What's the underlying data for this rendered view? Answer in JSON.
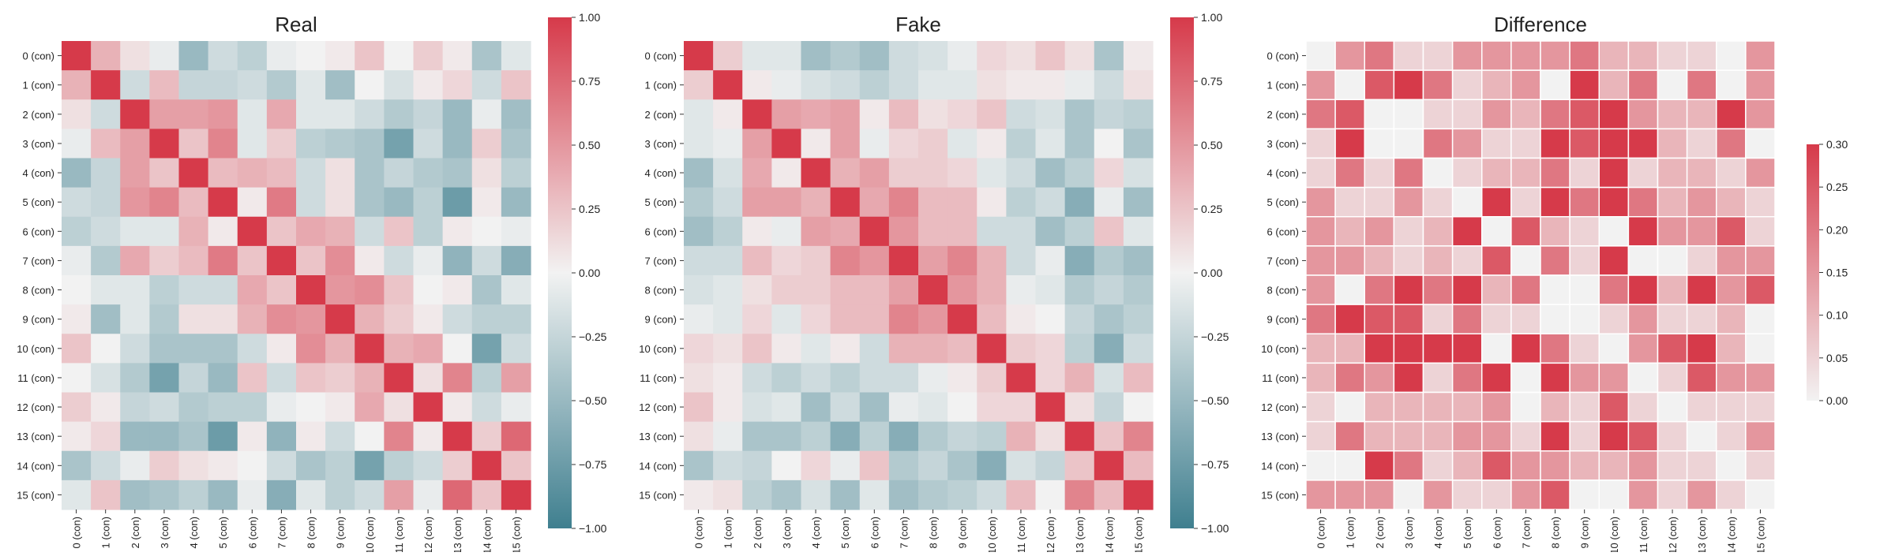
{
  "figure": {
    "panels": [
      "real",
      "fake",
      "difference"
    ]
  },
  "chart_data": [
    {
      "type": "heatmap",
      "title": "Real",
      "labels": [
        "0 (con)",
        "1 (con)",
        "2 (con)",
        "3 (con)",
        "4 (con)",
        "5 (con)",
        "6 (con)",
        "7 (con)",
        "8 (con)",
        "9 (con)",
        "10 (con)",
        "11 (con)",
        "12 (con)",
        "13 (con)",
        "14 (con)",
        "15 (con)"
      ],
      "colorscale": "diverging teal-white-red",
      "colors": {
        "negative": "#3f7f8f",
        "mid": "#f2f2f2",
        "positive": "#d63a4a"
      },
      "vmin": -1.0,
      "vmax": 1.0,
      "colorbar_ticks": [
        -1.0,
        -0.75,
        -0.5,
        -0.25,
        0.0,
        0.25,
        0.5,
        0.75,
        1.0
      ],
      "colorbar_tick_labels": [
        "−1.00",
        "−0.75",
        "−0.50",
        "−0.25",
        "0.00",
        "0.25",
        "0.50",
        "0.75",
        "1.00"
      ],
      "gridlines": false,
      "matrix": [
        [
          1.0,
          0.35,
          0.1,
          -0.05,
          -0.5,
          -0.2,
          -0.3,
          -0.05,
          0.0,
          0.05,
          0.25,
          0.0,
          0.2,
          0.05,
          -0.4,
          -0.1
        ],
        [
          0.35,
          1.0,
          -0.2,
          0.3,
          -0.25,
          -0.25,
          -0.2,
          -0.35,
          -0.1,
          -0.45,
          0.0,
          -0.15,
          0.05,
          0.15,
          -0.2,
          0.25
        ],
        [
          0.1,
          -0.2,
          1.0,
          0.45,
          0.45,
          0.5,
          -0.1,
          0.4,
          -0.1,
          -0.1,
          -0.2,
          -0.35,
          -0.25,
          -0.5,
          -0.05,
          -0.45
        ],
        [
          -0.05,
          0.3,
          0.45,
          1.0,
          0.25,
          0.6,
          -0.1,
          0.2,
          -0.3,
          -0.35,
          -0.4,
          -0.7,
          -0.2,
          -0.5,
          0.2,
          -0.4
        ],
        [
          -0.5,
          -0.25,
          0.45,
          0.25,
          1.0,
          0.3,
          0.35,
          0.3,
          -0.2,
          0.1,
          -0.4,
          -0.25,
          -0.35,
          -0.4,
          0.1,
          -0.3
        ],
        [
          -0.2,
          -0.25,
          0.5,
          0.6,
          0.3,
          1.0,
          0.05,
          0.65,
          -0.2,
          0.1,
          -0.4,
          -0.5,
          -0.3,
          -0.75,
          0.05,
          -0.5
        ],
        [
          -0.3,
          -0.2,
          -0.1,
          -0.1,
          0.35,
          0.05,
          1.0,
          0.25,
          0.4,
          0.35,
          -0.2,
          0.25,
          -0.3,
          0.05,
          0.0,
          -0.05
        ],
        [
          -0.05,
          -0.35,
          0.4,
          0.2,
          0.3,
          0.65,
          0.25,
          1.0,
          0.25,
          0.55,
          0.05,
          -0.2,
          -0.05,
          -0.55,
          -0.2,
          -0.6
        ],
        [
          0.0,
          -0.1,
          -0.1,
          -0.3,
          -0.2,
          -0.2,
          0.4,
          0.25,
          1.0,
          0.5,
          0.55,
          0.25,
          0.0,
          0.05,
          -0.4,
          -0.1
        ],
        [
          0.05,
          -0.45,
          -0.1,
          -0.35,
          0.1,
          0.1,
          0.35,
          0.55,
          0.5,
          1.0,
          0.35,
          0.2,
          0.05,
          -0.2,
          -0.3,
          -0.3
        ],
        [
          0.25,
          0.0,
          -0.2,
          -0.4,
          -0.4,
          -0.4,
          -0.2,
          0.05,
          0.55,
          0.35,
          1.0,
          0.35,
          0.4,
          0.0,
          -0.7,
          -0.2
        ],
        [
          0.0,
          -0.15,
          -0.35,
          -0.7,
          -0.25,
          -0.5,
          0.25,
          -0.2,
          0.25,
          0.2,
          0.35,
          1.0,
          0.1,
          0.6,
          -0.3,
          0.45
        ],
        [
          0.2,
          0.05,
          -0.25,
          -0.2,
          -0.35,
          -0.3,
          -0.3,
          -0.05,
          0.0,
          0.05,
          0.4,
          0.1,
          1.0,
          0.05,
          -0.2,
          -0.05
        ],
        [
          0.05,
          0.15,
          -0.5,
          -0.5,
          -0.4,
          -0.75,
          0.05,
          -0.55,
          0.05,
          -0.2,
          0.0,
          0.6,
          0.05,
          1.0,
          0.2,
          0.75
        ],
        [
          -0.4,
          -0.2,
          -0.05,
          0.2,
          0.1,
          0.05,
          0.0,
          -0.2,
          -0.4,
          -0.3,
          -0.7,
          -0.3,
          -0.2,
          0.2,
          1.0,
          0.25
        ],
        [
          -0.1,
          0.25,
          -0.45,
          -0.4,
          -0.3,
          -0.5,
          -0.05,
          -0.6,
          -0.1,
          -0.3,
          -0.2,
          0.45,
          -0.05,
          0.75,
          0.25,
          1.0
        ]
      ]
    },
    {
      "type": "heatmap",
      "title": "Fake",
      "labels": [
        "0 (con)",
        "1 (con)",
        "2 (con)",
        "3 (con)",
        "4 (con)",
        "5 (con)",
        "6 (con)",
        "7 (con)",
        "8 (con)",
        "9 (con)",
        "10 (con)",
        "11 (con)",
        "12 (con)",
        "13 (con)",
        "14 (con)",
        "15 (con)"
      ],
      "colorscale": "diverging teal-white-red",
      "colors": {
        "negative": "#3f7f8f",
        "mid": "#f2f2f2",
        "positive": "#d63a4a"
      },
      "vmin": -1.0,
      "vmax": 1.0,
      "colorbar_ticks": [
        -1.0,
        -0.75,
        -0.5,
        -0.25,
        0.0,
        0.25,
        0.5,
        0.75,
        1.0
      ],
      "colorbar_tick_labels": [
        "−1.00",
        "−0.75",
        "−0.50",
        "−0.25",
        "0.00",
        "0.25",
        "0.50",
        "0.75",
        "1.00"
      ],
      "gridlines": false,
      "matrix": [
        [
          1.0,
          0.2,
          -0.1,
          -0.1,
          -0.45,
          -0.35,
          -0.45,
          -0.2,
          -0.15,
          -0.05,
          0.15,
          0.1,
          0.25,
          0.1,
          -0.4,
          0.05
        ],
        [
          0.2,
          1.0,
          0.05,
          -0.05,
          -0.15,
          -0.2,
          -0.3,
          -0.2,
          -0.1,
          -0.1,
          0.1,
          0.05,
          0.05,
          -0.05,
          -0.2,
          0.1
        ],
        [
          -0.1,
          0.05,
          1.0,
          0.45,
          0.4,
          0.45,
          0.05,
          0.3,
          0.1,
          0.15,
          0.25,
          -0.2,
          -0.15,
          -0.4,
          -0.25,
          -0.3
        ],
        [
          -0.1,
          -0.05,
          0.45,
          1.0,
          0.05,
          0.45,
          -0.05,
          0.15,
          0.2,
          -0.1,
          0.05,
          -0.3,
          -0.1,
          -0.4,
          0.0,
          -0.4
        ],
        [
          -0.45,
          -0.15,
          0.4,
          0.05,
          1.0,
          0.35,
          0.45,
          0.2,
          0.2,
          0.15,
          -0.1,
          -0.2,
          -0.45,
          -0.3,
          0.15,
          -0.15
        ],
        [
          -0.35,
          -0.2,
          0.45,
          0.45,
          0.35,
          1.0,
          0.4,
          0.6,
          0.3,
          0.3,
          0.05,
          -0.3,
          -0.2,
          -0.6,
          -0.05,
          -0.45
        ],
        [
          -0.45,
          -0.3,
          0.05,
          -0.05,
          0.45,
          0.4,
          1.0,
          0.5,
          0.3,
          0.3,
          -0.2,
          -0.2,
          -0.45,
          -0.3,
          0.25,
          -0.1
        ],
        [
          -0.2,
          -0.2,
          0.3,
          0.15,
          0.2,
          0.6,
          0.5,
          1.0,
          0.45,
          0.6,
          0.35,
          -0.2,
          -0.05,
          -0.6,
          -0.35,
          -0.45
        ],
        [
          -0.15,
          -0.1,
          0.1,
          0.2,
          0.2,
          0.3,
          0.3,
          0.45,
          1.0,
          0.5,
          0.35,
          -0.05,
          -0.1,
          -0.35,
          -0.25,
          -0.35
        ],
        [
          -0.05,
          -0.1,
          0.15,
          -0.1,
          0.15,
          0.3,
          0.3,
          0.6,
          0.5,
          1.0,
          0.3,
          0.05,
          0.0,
          -0.25,
          -0.4,
          -0.3
        ],
        [
          0.15,
          0.1,
          0.25,
          0.05,
          -0.1,
          0.05,
          -0.2,
          0.35,
          0.35,
          0.3,
          1.0,
          0.2,
          0.15,
          -0.3,
          -0.6,
          -0.2
        ],
        [
          0.1,
          0.05,
          -0.2,
          -0.3,
          -0.2,
          -0.3,
          -0.2,
          -0.2,
          -0.05,
          0.05,
          0.2,
          1.0,
          0.15,
          0.35,
          -0.15,
          0.3
        ],
        [
          0.25,
          0.05,
          -0.15,
          -0.1,
          -0.45,
          -0.2,
          -0.45,
          -0.05,
          -0.1,
          0.0,
          0.15,
          0.15,
          1.0,
          0.1,
          -0.25,
          0.0
        ],
        [
          0.1,
          -0.05,
          -0.4,
          -0.4,
          -0.3,
          -0.6,
          -0.3,
          -0.6,
          -0.35,
          -0.25,
          -0.3,
          0.35,
          0.1,
          1.0,
          0.25,
          0.6
        ],
        [
          -0.4,
          -0.2,
          -0.25,
          0.0,
          0.15,
          -0.05,
          0.25,
          -0.35,
          -0.25,
          -0.4,
          -0.6,
          -0.15,
          -0.25,
          0.25,
          1.0,
          0.3
        ],
        [
          0.05,
          0.1,
          -0.3,
          -0.4,
          -0.15,
          -0.45,
          -0.1,
          -0.45,
          -0.35,
          -0.3,
          -0.2,
          0.3,
          0.0,
          0.6,
          0.3,
          1.0
        ]
      ]
    },
    {
      "type": "heatmap",
      "title": "Difference",
      "labels": [
        "0 (con)",
        "1 (con)",
        "2 (con)",
        "3 (con)",
        "4 (con)",
        "5 (con)",
        "6 (con)",
        "7 (con)",
        "8 (con)",
        "9 (con)",
        "10 (con)",
        "11 (con)",
        "12 (con)",
        "13 (con)",
        "14 (con)",
        "15 (con)"
      ],
      "colorscale": "sequential white-red",
      "colors": {
        "low": "#f2f2f2",
        "high": "#d63a4a"
      },
      "vmin": 0.0,
      "vmax": 0.3,
      "colorbar_ticks": [
        0.0,
        0.05,
        0.1,
        0.15,
        0.2,
        0.25,
        0.3
      ],
      "colorbar_tick_labels": [
        "0.00",
        "0.05",
        "0.10",
        "0.15",
        "0.20",
        "0.25",
        "0.30"
      ],
      "gridlines": true,
      "matrix": [
        [
          0.0,
          0.15,
          0.2,
          0.05,
          0.05,
          0.15,
          0.15,
          0.15,
          0.15,
          0.2,
          0.1,
          0.1,
          0.05,
          0.05,
          0.0,
          0.15
        ],
        [
          0.15,
          0.0,
          0.25,
          0.3,
          0.2,
          0.05,
          0.1,
          0.15,
          0.0,
          0.3,
          0.1,
          0.2,
          0.0,
          0.2,
          0.0,
          0.15
        ],
        [
          0.2,
          0.25,
          0.0,
          0.0,
          0.05,
          0.05,
          0.15,
          0.1,
          0.2,
          0.25,
          0.3,
          0.15,
          0.1,
          0.1,
          0.3,
          0.15
        ],
        [
          0.05,
          0.3,
          0.0,
          0.0,
          0.2,
          0.15,
          0.05,
          0.05,
          0.3,
          0.25,
          0.3,
          0.3,
          0.1,
          0.05,
          0.2,
          0.0
        ],
        [
          0.05,
          0.2,
          0.05,
          0.2,
          0.0,
          0.05,
          0.1,
          0.1,
          0.2,
          0.05,
          0.3,
          0.05,
          0.1,
          0.1,
          0.05,
          0.15
        ],
        [
          0.15,
          0.05,
          0.05,
          0.15,
          0.05,
          0.0,
          0.35,
          0.05,
          0.3,
          0.2,
          0.3,
          0.2,
          0.1,
          0.15,
          0.1,
          0.05
        ],
        [
          0.15,
          0.1,
          0.15,
          0.05,
          0.1,
          0.35,
          0.0,
          0.25,
          0.1,
          0.05,
          0.0,
          0.3,
          0.15,
          0.15,
          0.25,
          0.05
        ],
        [
          0.15,
          0.15,
          0.1,
          0.05,
          0.1,
          0.05,
          0.25,
          0.0,
          0.2,
          0.05,
          0.3,
          0.0,
          0.0,
          0.05,
          0.15,
          0.15
        ],
        [
          0.15,
          0.0,
          0.2,
          0.3,
          0.2,
          0.3,
          0.1,
          0.2,
          0.0,
          0.0,
          0.2,
          0.3,
          0.1,
          0.3,
          0.15,
          0.25
        ],
        [
          0.2,
          0.3,
          0.25,
          0.25,
          0.05,
          0.2,
          0.05,
          0.05,
          0.0,
          0.0,
          0.05,
          0.15,
          0.05,
          0.05,
          0.1,
          0.0
        ],
        [
          0.1,
          0.1,
          0.3,
          0.3,
          0.3,
          0.3,
          0.0,
          0.3,
          0.2,
          0.05,
          0.0,
          0.15,
          0.25,
          0.3,
          0.1,
          0.0
        ],
        [
          0.1,
          0.2,
          0.15,
          0.3,
          0.05,
          0.2,
          0.3,
          0.0,
          0.3,
          0.15,
          0.15,
          0.0,
          0.05,
          0.25,
          0.15,
          0.15
        ],
        [
          0.05,
          0.0,
          0.1,
          0.1,
          0.1,
          0.1,
          0.15,
          0.0,
          0.1,
          0.05,
          0.25,
          0.05,
          0.0,
          0.05,
          0.05,
          0.05
        ],
        [
          0.05,
          0.2,
          0.1,
          0.1,
          0.1,
          0.15,
          0.15,
          0.05,
          0.3,
          0.05,
          0.3,
          0.25,
          0.05,
          0.0,
          0.05,
          0.15
        ],
        [
          0.0,
          0.0,
          0.3,
          0.2,
          0.05,
          0.1,
          0.25,
          0.15,
          0.15,
          0.1,
          0.1,
          0.15,
          0.05,
          0.05,
          0.0,
          0.05
        ],
        [
          0.15,
          0.15,
          0.15,
          0.0,
          0.15,
          0.05,
          0.05,
          0.15,
          0.25,
          0.0,
          0.0,
          0.15,
          0.05,
          0.15,
          0.05,
          0.0
        ]
      ]
    }
  ]
}
